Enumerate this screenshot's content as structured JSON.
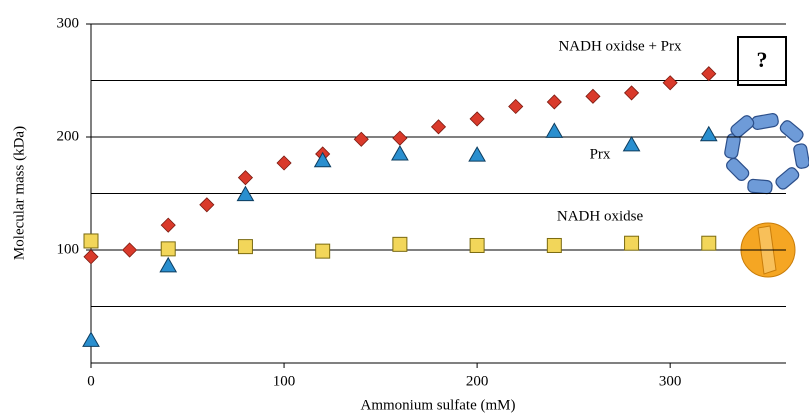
{
  "chart_data": {
    "type": "scatter",
    "xlabel": "Ammonium sulfate (mM)",
    "ylabel": "Molecular mass (kDa)",
    "xlim": [
      0,
      360
    ],
    "xticks": [
      0,
      100,
      200,
      300
    ],
    "ylim": [
      0,
      300
    ],
    "yticks": [
      100,
      200,
      300
    ],
    "yminor": [
      50,
      150,
      250
    ],
    "grid": true,
    "annotation": "?",
    "series": [
      {
        "name": "NADH oxidse + Prx",
        "color": "#d93a2b",
        "marker": "diamond",
        "x": [
          0,
          20,
          40,
          60,
          80,
          100,
          120,
          140,
          160,
          180,
          200,
          220,
          240,
          260,
          280,
          300,
          320
        ],
        "values": [
          94,
          100,
          122,
          140,
          164,
          177,
          185,
          198,
          199,
          209,
          216,
          227,
          231,
          236,
          239,
          248,
          256
        ]
      },
      {
        "name": "Prx",
        "color": "#2a8fcf",
        "marker": "triangle",
        "x": [
          0,
          40,
          80,
          120,
          160,
          200,
          240,
          280,
          320
        ],
        "values": [
          20,
          86,
          149,
          179,
          185,
          184,
          205,
          193,
          202
        ]
      },
      {
        "name": "NADH oxidse",
        "color": "#f2d65a",
        "marker": "square",
        "x": [
          0,
          40,
          80,
          120,
          160,
          200,
          240,
          280,
          320
        ],
        "values": [
          108,
          101,
          103,
          99,
          105,
          104,
          104,
          106,
          106
        ]
      }
    ]
  }
}
